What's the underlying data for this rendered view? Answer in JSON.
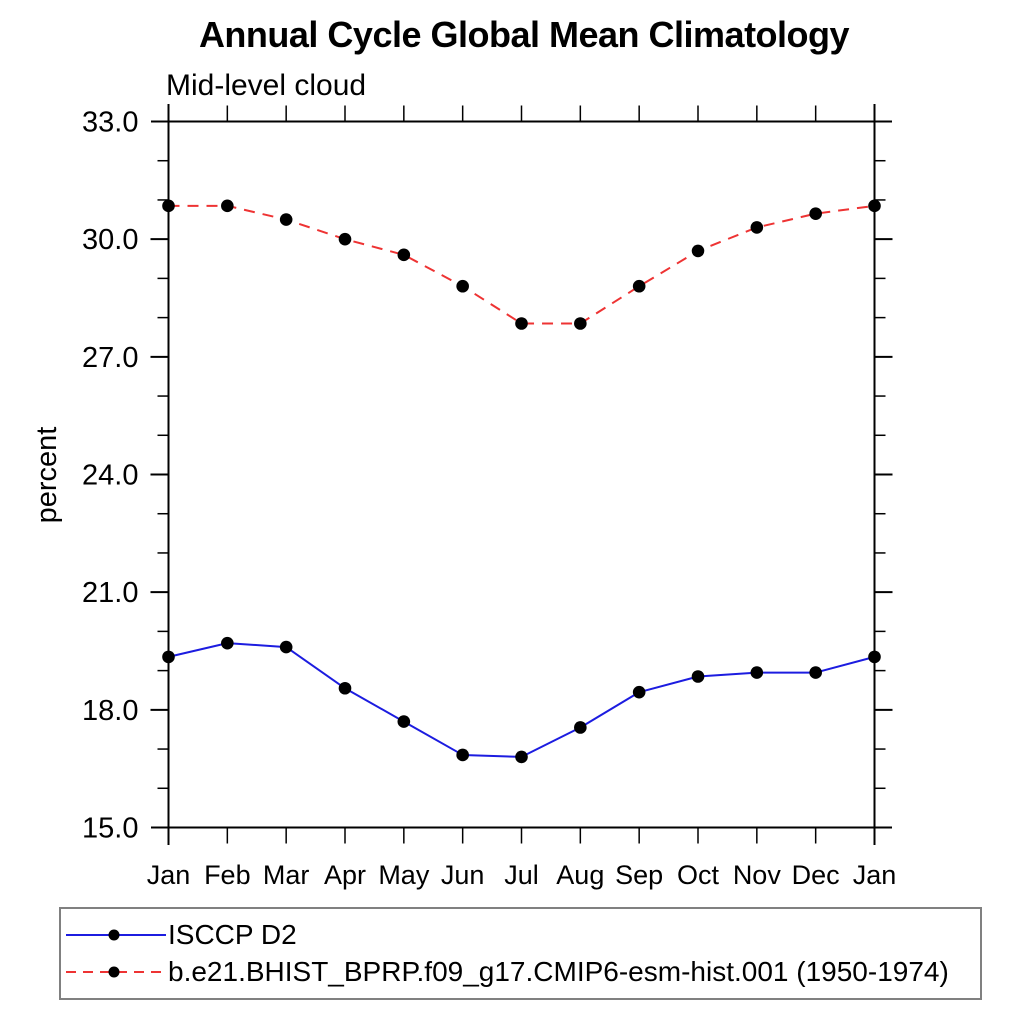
{
  "page": {
    "background": "#ffffff"
  },
  "chart_data": {
    "type": "line",
    "title": "Annual Cycle Global Mean Climatology",
    "subtitle": "Mid-level cloud",
    "xlabel": "",
    "ylabel": "percent",
    "categories": [
      "Jan",
      "Feb",
      "Mar",
      "Apr",
      "May",
      "Jun",
      "Jul",
      "Aug",
      "Sep",
      "Oct",
      "Nov",
      "Dec",
      "Jan"
    ],
    "ylim": [
      15.0,
      33.0
    ],
    "ytick_major_interval": 3.0,
    "ytick_minor_interval": 1.0,
    "ytick_labels": [
      "15.0",
      "18.0",
      "21.0",
      "24.0",
      "27.0",
      "30.0",
      "33.0"
    ],
    "grid": false,
    "legend_position": "bottom-left",
    "axis_color": "#000000",
    "marker": "filled-circle",
    "marker_color": "#000000",
    "series": [
      {
        "name": "ISCCP D2",
        "color": "#1c1ce0",
        "style": "solid",
        "values": [
          19.35,
          19.7,
          19.6,
          18.55,
          17.7,
          16.85,
          16.8,
          17.55,
          18.45,
          18.85,
          18.95,
          18.95,
          19.35
        ]
      },
      {
        "name": "b.e21.BHIST_BPRP.f09_g17.CMIP6-esm-hist.001 (1950-1974)",
        "color": "#ee3333",
        "style": "dashed",
        "values": [
          30.85,
          30.85,
          30.5,
          30.0,
          29.6,
          28.8,
          27.85,
          27.85,
          28.8,
          29.7,
          30.3,
          30.65,
          30.85
        ]
      }
    ]
  }
}
